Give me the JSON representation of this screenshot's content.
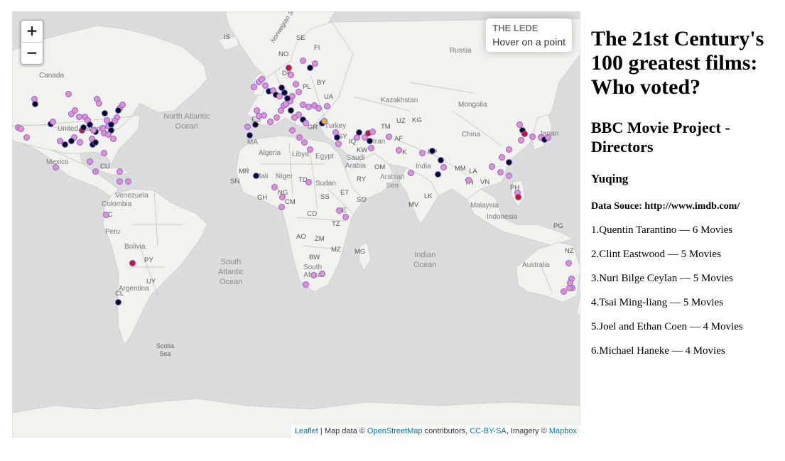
{
  "map": {
    "zoom_in_label": "+",
    "zoom_out_label": "−",
    "info_title": "THE LEDE",
    "info_text": "Hover on a point",
    "attribution": {
      "leaflet": "Leaflet",
      "map_data": " | Map data © ",
      "osm": "OpenStreetMap",
      "contributors": " contributors, ",
      "license": "CC-BY-SA",
      "imagery": ", Imagery © ",
      "mapbox": "Mapbox"
    },
    "labels": {
      "canada": "Canada",
      "united_states": "United States",
      "mexico": "Mexico",
      "cu": "CU",
      "venezuela": "Venezuela",
      "colombia": "Colombia",
      "ec": "EC",
      "peru": "Peru",
      "bolivia": "Bolivia",
      "py": "PY",
      "uy": "UY",
      "argentina": "Argentina",
      "cl": "CL",
      "north_atlantic": "North Atlantic\nOcean",
      "south_atlantic": "South\nAtlantic\nOcean",
      "scotia_sea": "Scotia\nSea",
      "is": "IS",
      "norwegian_sea": "Norwegian Sea",
      "se": "SE",
      "fi": "FI",
      "no": "NO",
      "dk": "DK",
      "pl": "PL",
      "by": "BY",
      "ua": "UA",
      "gr": "GR",
      "es": "ES",
      "russia": "Russia",
      "kazakhstan": "Kazakhstan",
      "mongolia": "Mongolia",
      "uz": "UZ",
      "kg": "KG",
      "tm": "TM",
      "af": "AF",
      "china": "China",
      "turkey": "Turkey",
      "sy": "SY",
      "iq": "IQ",
      "iran": "Iran",
      "kw": "KW",
      "pk": "PK",
      "np": "NP",
      "ma": "MA",
      "algeria": "Algeria",
      "libya": "Libya",
      "egypt": "Egypt",
      "saudi_arabia": "Saudi\nArabia",
      "om": "OM",
      "ry": "RY",
      "arabian_sea": "Arabian\nSea",
      "india": "India",
      "mm": "MM",
      "la": "LA",
      "th": "TH",
      "vn": "VN",
      "ph": "PH",
      "lk": "LK",
      "mv": "MV",
      "malaysia": "Malaysia",
      "indonesia": "Indonesia",
      "pg": "PG",
      "japan": "Japan",
      "mr": "MR",
      "mali": "Mali",
      "niger": "Niger",
      "td": "TD",
      "sudan": "Sudan",
      "sn": "SN",
      "gh": "GH",
      "ng": "NG",
      "cm": "CM",
      "ss": "SS",
      "et": "ET",
      "so": "SO",
      "ke": "KE",
      "cd": "CD",
      "tz": "TZ",
      "ao": "AO",
      "zm": "ZM",
      "bw": "BW",
      "mz": "MZ",
      "mg": "MG",
      "south_africa": "South\nAfrica",
      "indian_ocean": "Indian\nOcean",
      "australia": "Australia",
      "nz": "NZ"
    }
  },
  "sidebar": {
    "title": "The 21st Century's 100 greatest films: Who voted?",
    "subtitle": "BBC Movie Project - Directors",
    "author": "Yuqing",
    "source": "Data Souce: http://www.imdb.com/",
    "directors": [
      "1.Quentin Tarantino — 6 Movies",
      "2.Clint Eastwood — 5 Movies",
      "3.Nuri Bilge Ceylan — 5 Movies",
      "4.Tsai Ming-liang — 5 Movies",
      "5.Joel and Ethan Coen — 4 Movies",
      "6.Michael Haneke — 4 Movies"
    ]
  },
  "colors": {
    "point_default": "#f08bc4",
    "point_border": "#6b6bf0",
    "point_dark": "#0b0b0b",
    "point_red": "#e60a1e",
    "point_orange": "#f5b00a",
    "water": "#dcdcdc",
    "land": "#f2f2ef"
  }
}
